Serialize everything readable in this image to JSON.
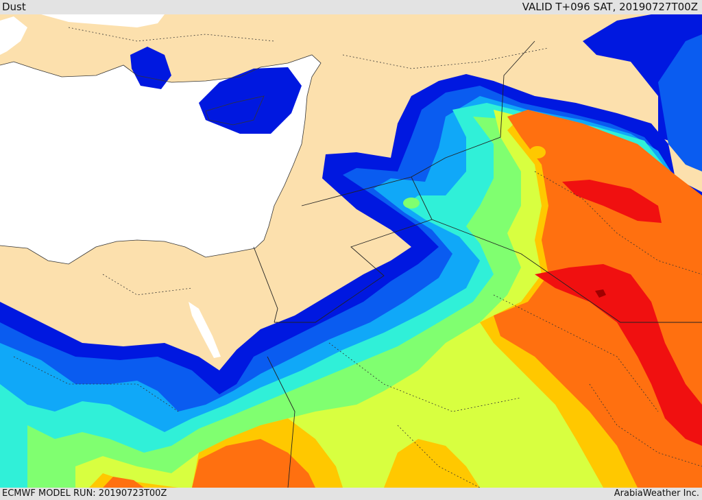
{
  "header": {
    "title": "Dust",
    "valid_time": "VALID T+096 SAT, 20190727T00Z"
  },
  "footer": {
    "model_run": "ECMWF MODEL RUN: 20190723T00Z",
    "credit": "ArabiaWeather Inc."
  },
  "colors": {
    "land": "#fce0ad",
    "sea": "#ffffff",
    "dust_levels": [
      "#0018e0",
      "#0a5cf0",
      "#10a8f8",
      "#30f0d8",
      "#80ff70",
      "#d8ff40",
      "#ffc800",
      "#ff7010",
      "#f01010",
      "#a00000"
    ]
  }
}
